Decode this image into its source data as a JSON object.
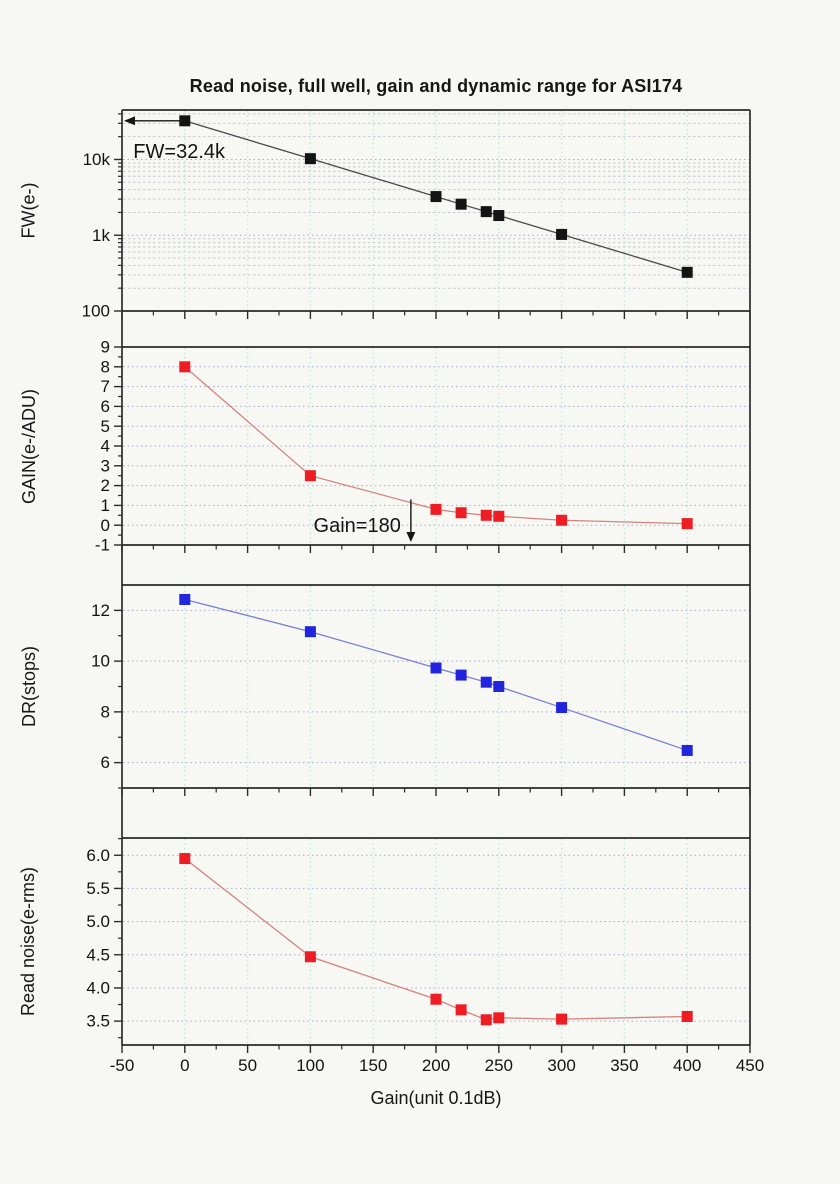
{
  "figure": {
    "title": "Read noise, full well, gain and dynamic range for ASI174",
    "x_axis_title": "Gain(unit 0.1dB)",
    "background_color": "#f7f7f4",
    "frame_color": "#2b2b2b",
    "vertical_grid_color": "#bfe5de",
    "horizontal_grid_color": "#a9abce",
    "minor_grid_color": "#c9c9d2"
  },
  "chart_data": {
    "type": "line",
    "title": "Read noise, full well, gain and dynamic range for ASI174",
    "xlabel": "Gain(unit 0.1dB)",
    "x": [
      0,
      100,
      200,
      220,
      240,
      250,
      300,
      400
    ],
    "xlim": [
      -50,
      450
    ],
    "x_major_ticks": [
      -50,
      0,
      50,
      100,
      150,
      200,
      250,
      300,
      350,
      400,
      450
    ],
    "x_tick_labels": [
      "-50",
      "0",
      "50",
      "100",
      "150",
      "200",
      "250",
      "300",
      "350",
      "400",
      "450"
    ],
    "x_minor_ticks": [
      -25,
      25,
      75,
      125,
      175,
      225,
      275,
      325,
      375,
      425
    ],
    "grid": true,
    "legend": "none",
    "panels": [
      {
        "name": "full-well",
        "ylabel": "FW(e-)",
        "scale": "log",
        "ylim": [
          100,
          45000
        ],
        "yticks": [
          {
            "v": 100,
            "label": "100"
          },
          {
            "v": 1000,
            "label": "1k"
          },
          {
            "v": 10000,
            "label": "10k"
          }
        ],
        "minor_ticks": [
          200,
          300,
          400,
          500,
          600,
          700,
          800,
          900,
          2000,
          3000,
          4000,
          5000,
          6000,
          7000,
          8000,
          9000,
          20000,
          30000,
          40000
        ],
        "gridlines": [
          1000,
          10000
        ],
        "minor_gridlines": [
          200,
          300,
          400,
          500,
          600,
          700,
          800,
          900,
          2000,
          3000,
          4000,
          5000,
          6000,
          7000,
          8000,
          9000,
          20000,
          30000,
          40000
        ],
        "marker_color": "#141414",
        "line_color": "#4a4a4a",
        "values": [
          32400,
          10250,
          3240,
          2570,
          2050,
          1820,
          1025,
          324
        ],
        "annotations": [
          {
            "kind": "arrow-left",
            "y": 32400,
            "from_x": 0,
            "text": "FW=32.4k",
            "text_x": -41,
            "text_y": 13000
          }
        ]
      },
      {
        "name": "gain",
        "ylabel": "GAIN(e-/ADU)",
        "scale": "linear",
        "ylim": [
          -1,
          9
        ],
        "yticks": [
          {
            "v": -1,
            "label": "-1"
          },
          {
            "v": 0,
            "label": "0"
          },
          {
            "v": 1,
            "label": "1"
          },
          {
            "v": 2,
            "label": "2"
          },
          {
            "v": 3,
            "label": "3"
          },
          {
            "v": 4,
            "label": "4"
          },
          {
            "v": 5,
            "label": "5"
          },
          {
            "v": 6,
            "label": "6"
          },
          {
            "v": 7,
            "label": "7"
          },
          {
            "v": 8,
            "label": "8"
          },
          {
            "v": 9,
            "label": "9"
          }
        ],
        "minor_ticks": [
          -0.5,
          0.5,
          1.5,
          2.5,
          3.5,
          4.5,
          5.5,
          6.5,
          7.5,
          8.5
        ],
        "gridlines": [
          0,
          1,
          2,
          3,
          4,
          5,
          6,
          7,
          8
        ],
        "minor_gridlines": [],
        "marker_color": "#ee1c23",
        "line_color": "#d4837f",
        "values": [
          8.0,
          2.5,
          0.8,
          0.63,
          0.5,
          0.45,
          0.25,
          0.08
        ],
        "annotations": [
          {
            "kind": "arrow-down",
            "x": 180,
            "from_y": 1.3,
            "to_y": -0.85,
            "text": "Gain=180",
            "text_x": 172,
            "text_y": -0.35,
            "anchor": "end"
          }
        ]
      },
      {
        "name": "dynamic-range",
        "ylabel": "DR(stops)",
        "scale": "linear",
        "ylim": [
          5,
          13
        ],
        "yticks": [
          {
            "v": 6,
            "label": "6"
          },
          {
            "v": 8,
            "label": "8"
          },
          {
            "v": 10,
            "label": "10"
          },
          {
            "v": 12,
            "label": "12"
          }
        ],
        "minor_ticks": [
          5,
          7,
          9,
          11
        ],
        "gridlines": [
          6,
          8,
          10,
          12
        ],
        "minor_gridlines": [],
        "marker_color": "#2126dd",
        "line_color": "#7b80d2",
        "values": [
          12.43,
          11.16,
          9.73,
          9.45,
          9.17,
          9.0,
          8.17,
          6.48
        ],
        "annotations": []
      },
      {
        "name": "read-noise",
        "ylabel": "Read noise(e-rms)",
        "scale": "linear",
        "ylim": [
          3.14,
          6.26
        ],
        "yticks": [
          {
            "v": 3.5,
            "label": "3.5"
          },
          {
            "v": 4.0,
            "label": "4.0"
          },
          {
            "v": 4.5,
            "label": "4.5"
          },
          {
            "v": 5.0,
            "label": "5.0"
          },
          {
            "v": 5.5,
            "label": "5.5"
          },
          {
            "v": 6.0,
            "label": "6.0"
          }
        ],
        "minor_ticks": [
          3.25,
          3.75,
          4.25,
          4.75,
          5.25,
          5.75,
          6.25
        ],
        "gridlines": [
          3.5,
          4.0,
          4.5,
          5.0,
          5.5,
          6.0
        ],
        "minor_gridlines": [],
        "marker_color": "#ee1c23",
        "line_color": "#d4837f",
        "values": [
          5.95,
          4.47,
          3.83,
          3.67,
          3.52,
          3.55,
          3.53,
          3.57
        ],
        "annotations": []
      }
    ]
  }
}
